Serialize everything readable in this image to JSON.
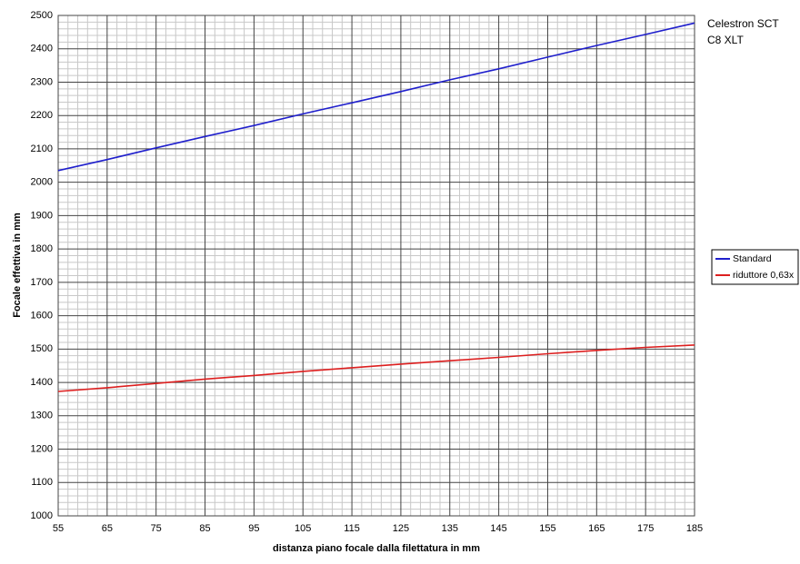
{
  "chart_data": {
    "type": "line",
    "xlabel": "distanza piano focale dalla filettatura in mm",
    "ylabel": "Focale effettiva in mm",
    "annotation": [
      "Celestron SCT",
      "C8 XLT"
    ],
    "x": [
      55,
      65,
      75,
      85,
      95,
      105,
      115,
      125,
      135,
      145,
      155,
      165,
      175,
      185
    ],
    "series": [
      {
        "name": "Standard",
        "color": "#1f1fcc",
        "values": [
          2035,
          2068,
          2103,
          2137,
          2170,
          2205,
          2238,
          2272,
          2307,
          2340,
          2375,
          2410,
          2443,
          2477
        ]
      },
      {
        "name": "riduttore 0,63x",
        "color": "#dd1f1f",
        "values": [
          1373,
          1384,
          1397,
          1410,
          1421,
          1433,
          1444,
          1455,
          1465,
          1475,
          1486,
          1496,
          1505,
          1512
        ]
      }
    ],
    "xlim": [
      55,
      185
    ],
    "xticks": [
      55,
      65,
      75,
      85,
      95,
      105,
      115,
      125,
      135,
      145,
      155,
      165,
      175,
      185
    ],
    "ylim": [
      1000,
      2500
    ],
    "yticks": [
      1000,
      1100,
      1200,
      1300,
      1400,
      1500,
      1600,
      1700,
      1800,
      1900,
      2000,
      2100,
      2200,
      2300,
      2400,
      2500
    ],
    "grid": true,
    "minor_grid": true,
    "legend": "right"
  }
}
